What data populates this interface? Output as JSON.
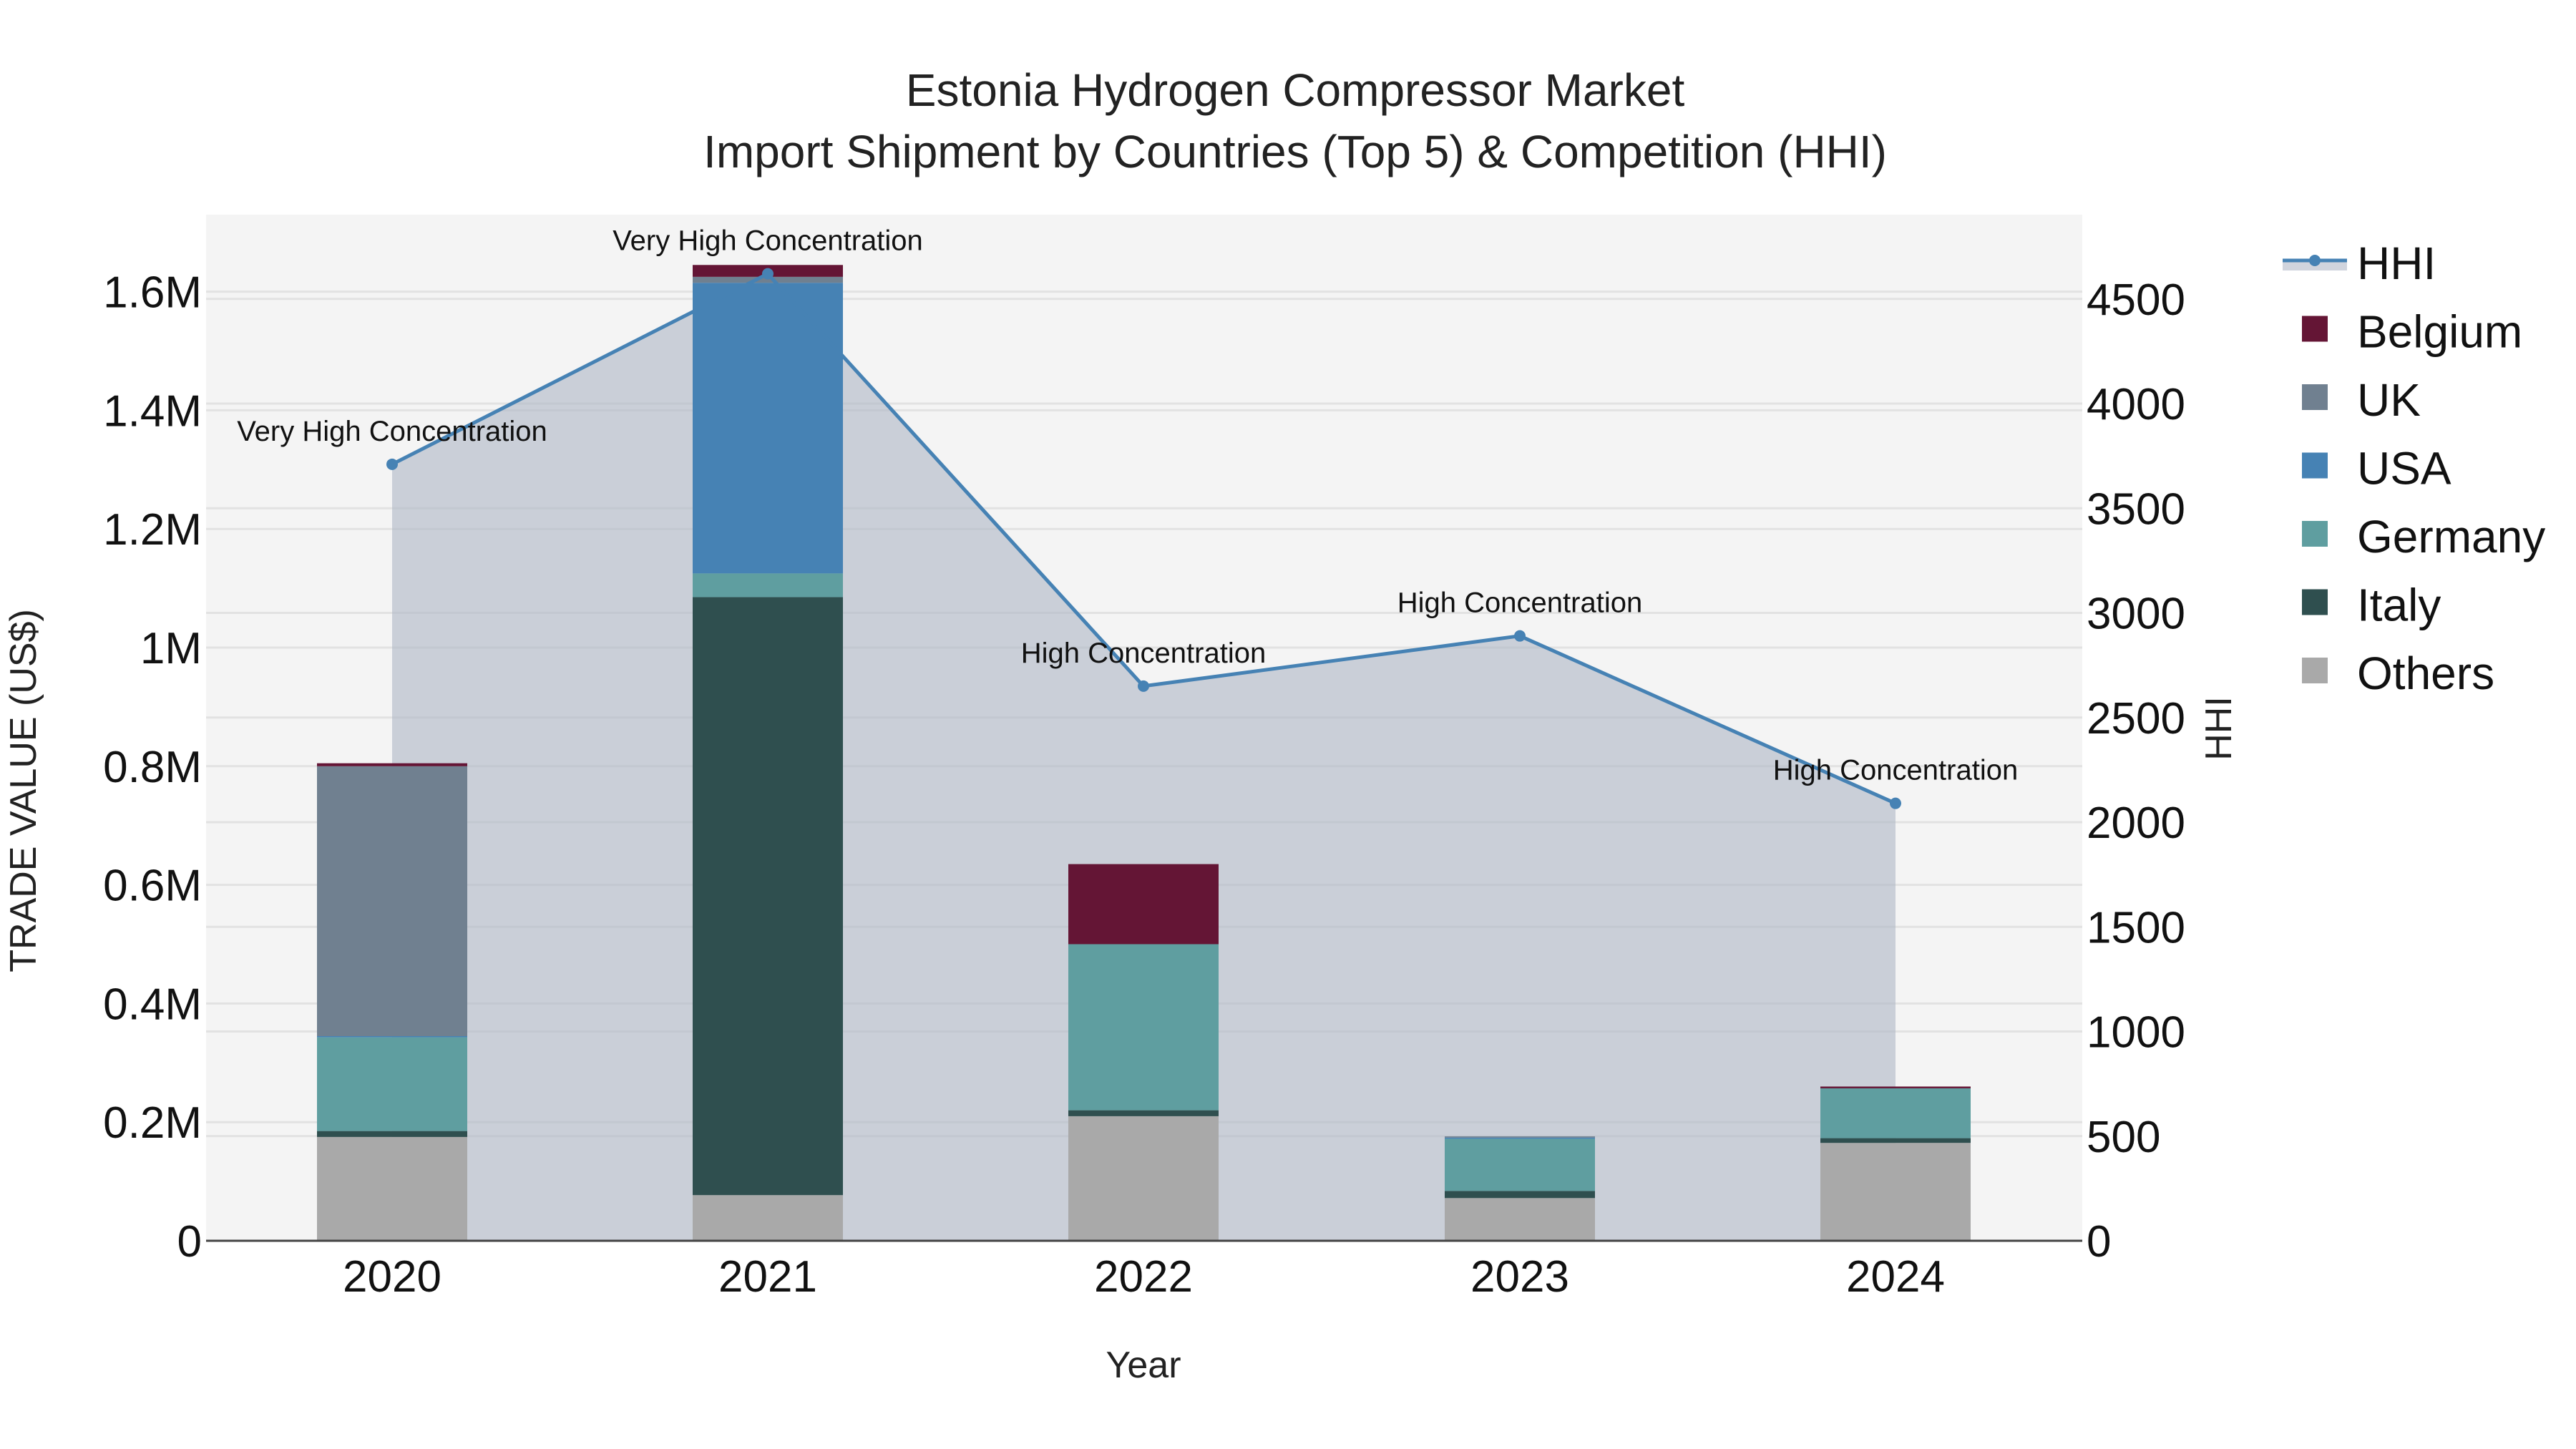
{
  "title": {
    "line1": "Estonia Hydrogen Compressor Market",
    "line2": "Import Shipment by Countries (Top 5) & Competition (HHI)"
  },
  "axes": {
    "x_title": "Year",
    "y_left_title": "TRADE VALUE (US$)",
    "y_right_title": "HHI",
    "y_left_ticks": [
      "0",
      "0.2M",
      "0.4M",
      "0.6M",
      "0.8M",
      "1M",
      "1.2M",
      "1.4M",
      "1.6M"
    ],
    "y_right_ticks": [
      "0",
      "500",
      "1000",
      "1500",
      "2000",
      "2500",
      "3000",
      "3500",
      "4000",
      "4500"
    ]
  },
  "legend": [
    {
      "name": "HHI",
      "type": "line",
      "color": "#4682B4"
    },
    {
      "name": "Belgium",
      "type": "bar",
      "color": "#641535"
    },
    {
      "name": "UK",
      "type": "bar",
      "color": "#708090"
    },
    {
      "name": "USA",
      "type": "bar",
      "color": "#4682B4"
    },
    {
      "name": "Germany",
      "type": "bar",
      "color": "#5F9EA0"
    },
    {
      "name": "Italy",
      "type": "bar",
      "color": "#2F4F4F"
    },
    {
      "name": "Others",
      "type": "bar",
      "color": "#A9A9A9"
    }
  ],
  "chart_data": {
    "type": "bar",
    "stacked": true,
    "title": "Estonia Hydrogen Compressor Market — Import Shipment by Countries (Top 5) & Competition (HHI)",
    "xlabel": "Year",
    "ylabel": "TRADE VALUE (US$)",
    "y2label": "HHI",
    "categories": [
      "2020",
      "2021",
      "2022",
      "2023",
      "2024"
    ],
    "ylim": [
      0,
      1720000
    ],
    "y2lim": [
      0,
      4900
    ],
    "series": [
      {
        "name": "Others",
        "color": "#A9A9A9",
        "values": [
          175000,
          77000,
          210000,
          72000,
          165000
        ]
      },
      {
        "name": "Italy",
        "color": "#2F4F4F",
        "values": [
          10000,
          1008000,
          10000,
          12000,
          8000
        ]
      },
      {
        "name": "Germany",
        "color": "#5F9EA0",
        "values": [
          158000,
          40000,
          280000,
          88000,
          84000
        ]
      },
      {
        "name": "USA",
        "color": "#4682B4",
        "values": [
          2000,
          490000,
          0,
          2000,
          0
        ]
      },
      {
        "name": "UK",
        "color": "#708090",
        "values": [
          455000,
          10000,
          0,
          2000,
          0
        ]
      },
      {
        "name": "Belgium",
        "color": "#641535",
        "values": [
          5000,
          20000,
          135000,
          0,
          3000
        ]
      }
    ],
    "line_series": {
      "name": "HHI",
      "axis": "right",
      "color": "#4682B4",
      "fill": "tozeroy",
      "values": [
        3710,
        4620,
        2650,
        2890,
        2090
      ],
      "labels": [
        "Very High Concentration",
        "Very High Concentration",
        "High Concentration",
        "High Concentration",
        "High Concentration"
      ]
    },
    "grid": true,
    "legend_position": "right"
  }
}
